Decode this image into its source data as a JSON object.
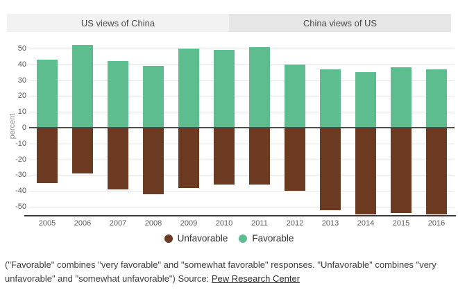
{
  "tabs": [
    {
      "label": "US views of China",
      "active": true
    },
    {
      "label": "China views of US",
      "active": false
    }
  ],
  "chart_data": {
    "type": "bar",
    "subtype": "diverging-stacked",
    "categories": [
      "2005",
      "2006",
      "2007",
      "2008",
      "2009",
      "2010",
      "2011",
      "2012",
      "2013",
      "2014",
      "2015",
      "2016"
    ],
    "series": [
      {
        "name": "Favorable",
        "color": "#5ebd8e",
        "values": [
          43,
          52,
          42,
          39,
          50,
          49,
          51,
          40,
          37,
          35,
          38,
          37
        ]
      },
      {
        "name": "Unfavorable",
        "color": "#6c3a21",
        "values": [
          -35,
          -29,
          -39,
          -42,
          -38,
          -36,
          -36,
          -40,
          -52,
          -55,
          -54,
          -55
        ]
      }
    ],
    "title": "",
    "xlabel": "",
    "ylabel": "percent",
    "yticks": [
      50,
      40,
      30,
      20,
      10,
      0,
      -10,
      -20,
      -30,
      -40,
      -50
    ],
    "ylim": [
      -57,
      53
    ],
    "grid": true,
    "legend_position": "bottom",
    "zero_line_color": "#4d4d4d",
    "gridline_color": "#e3e3e3"
  },
  "legend": {
    "items": [
      {
        "label": "Unfavorable",
        "color": "#6c3a21"
      },
      {
        "label": "Favorable",
        "color": "#5ebd8e"
      }
    ]
  },
  "footnote": {
    "text": "(\"Favorable\" combines \"very favorable\" and \"somewhat favorable\" responses. \"Unfavorable\" combines \"very unfavorable\" and \"somewhat unfavorable\") Source: ",
    "source_link": "Pew Research Center"
  }
}
